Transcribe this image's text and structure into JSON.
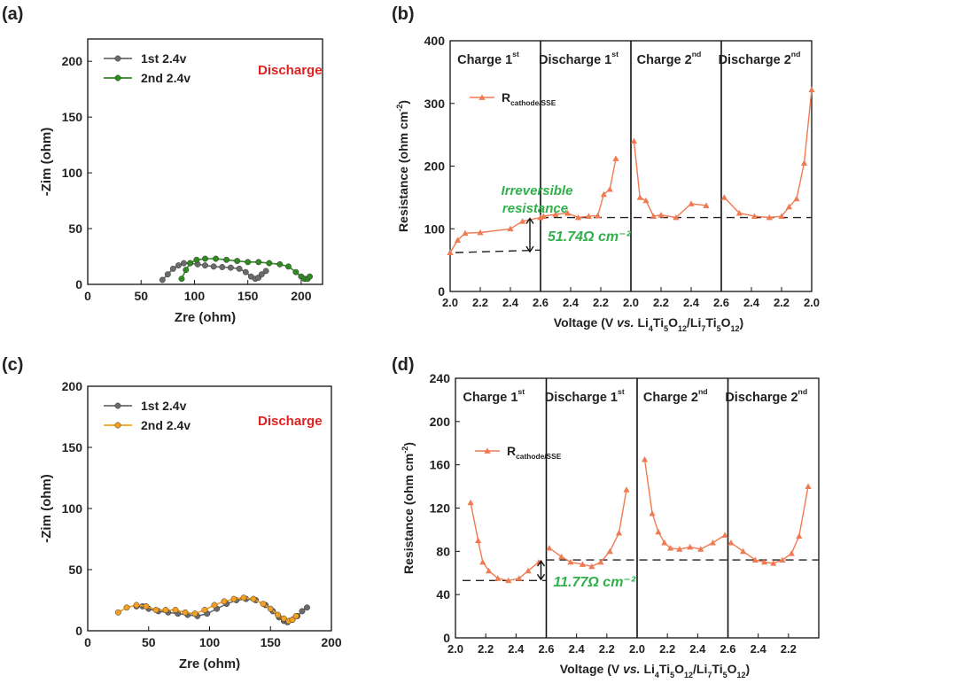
{
  "colors": {
    "grey": "#6b6b6b",
    "green": "#2e8b1e",
    "orange": "#f5a020",
    "coral": "#f07a52",
    "red_text": "#e02020",
    "green_text": "#2fb04a"
  },
  "chart_data": [
    {
      "panel": "(a)",
      "type": "line",
      "xlabel": "Zre (ohm)",
      "ylabel": "-Zim (ohm)",
      "xlim": [
        0,
        220
      ],
      "ylim": [
        0,
        220
      ],
      "xticks": [
        0,
        50,
        100,
        150,
        200
      ],
      "yticks": [
        0,
        50,
        100,
        150,
        200
      ],
      "annotation": "Discharge",
      "series": [
        {
          "name": "1st 2.4v",
          "color": "#6b6b6b",
          "x": [
            70,
            75,
            80,
            85,
            90,
            96,
            103,
            110,
            118,
            126,
            134,
            142,
            148,
            153,
            157,
            160,
            163,
            167
          ],
          "y": [
            4,
            9,
            14,
            17,
            19,
            19,
            18,
            17,
            16,
            15.5,
            15,
            14,
            11,
            7,
            5,
            6,
            9,
            12
          ]
        },
        {
          "name": "2nd 2.4v",
          "color": "#2e8b1e",
          "x": [
            88,
            92,
            96,
            102,
            110,
            120,
            130,
            140,
            150,
            160,
            170,
            180,
            188,
            195,
            200,
            203,
            206,
            208
          ],
          "y": [
            5,
            13,
            19,
            22,
            23,
            23,
            22,
            21,
            20,
            20,
            19,
            18,
            16,
            11,
            7,
            5,
            5,
            7
          ]
        }
      ]
    },
    {
      "panel": "(b)",
      "type": "line",
      "xlabel": "Voltage (V vs. Li4Ti5O12/Li7Ti5O12)",
      "ylabel": "Resistance (ohm cm-2)",
      "ylim": [
        0,
        400
      ],
      "yticks": [
        0,
        100,
        200,
        300,
        400
      ],
      "segment_ticks": [
        [
          "2.0",
          "2.2",
          "2.4"
        ],
        [
          "2.6",
          "2.4",
          "2.2"
        ],
        [
          "2.0",
          "2.2",
          "2.4"
        ],
        [
          "2.6",
          "2.4",
          "2.2",
          "2.0"
        ]
      ],
      "segment_titles": [
        [
          "Charge 1",
          "st"
        ],
        [
          "Discharge 1",
          "st"
        ],
        [
          "Charge 2",
          "nd"
        ],
        [
          "Discharge 2",
          "nd"
        ]
      ],
      "legend": [
        "R",
        "cathode/SSE"
      ],
      "dashed_lines": [
        {
          "from_x": 2.0,
          "from_y": 62,
          "to_x": 2.6,
          "to_y": 66
        },
        {
          "y": 118
        }
      ],
      "annotations": {
        "irreversible": [
          "Irreversible",
          "resistance"
        ],
        "delta": "51.74Ω cm⁻²"
      },
      "series": [
        {
          "name": "Charge 1st",
          "x": [
            2.0,
            2.05,
            2.1,
            2.2,
            2.4,
            2.48,
            2.6
          ],
          "y": [
            62,
            82,
            93,
            94,
            100,
            112,
            118
          ]
        },
        {
          "name": "Discharge 1st",
          "x": [
            2.58,
            2.5,
            2.42,
            2.35,
            2.28,
            2.22,
            2.18,
            2.14,
            2.1
          ],
          "y": [
            120,
            123,
            125,
            118,
            120,
            121,
            155,
            163,
            212
          ]
        },
        {
          "name": "Charge 2nd",
          "x": [
            2.02,
            2.06,
            2.1,
            2.15,
            2.2,
            2.3,
            2.4,
            2.5
          ],
          "y": [
            240,
            150,
            145,
            120,
            122,
            118,
            140,
            137
          ]
        },
        {
          "name": "Discharge 2nd",
          "x": [
            2.58,
            2.48,
            2.38,
            2.28,
            2.2,
            2.15,
            2.1,
            2.05,
            2.0
          ],
          "y": [
            150,
            125,
            120,
            118,
            120,
            135,
            148,
            205,
            322
          ]
        }
      ]
    },
    {
      "panel": "(c)",
      "type": "line",
      "xlabel": "Zre (ohm)",
      "ylabel": "-Zim (ohm)",
      "xlim": [
        0,
        200
      ],
      "ylim": [
        0,
        200
      ],
      "xticks": [
        0,
        50,
        100,
        150,
        200
      ],
      "yticks": [
        0,
        50,
        100,
        150,
        200
      ],
      "annotation": "Discharge",
      "series": [
        {
          "name": "1st 2.4v",
          "color": "#6b6b6b",
          "x": [
            40,
            45,
            50,
            58,
            66,
            74,
            82,
            90,
            98,
            106,
            114,
            122,
            130,
            138,
            146,
            152,
            157,
            161,
            164,
            168,
            172,
            176,
            180
          ],
          "y": [
            20,
            20,
            18,
            16,
            15,
            14,
            13,
            12,
            14,
            18,
            22,
            25,
            26,
            25,
            21,
            16,
            11,
            8,
            7,
            9,
            12,
            16,
            19
          ]
        },
        {
          "name": "2nd 2.4v",
          "color": "#f5a020",
          "x": [
            25,
            32,
            40,
            48,
            56,
            64,
            72,
            80,
            88,
            96,
            104,
            112,
            120,
            128,
            136,
            144,
            150,
            156,
            161,
            165,
            168,
            171
          ],
          "y": [
            15,
            19,
            21,
            20,
            17,
            17,
            17,
            15,
            14,
            17,
            21,
            24,
            26,
            27,
            26,
            22,
            18,
            13,
            10,
            8,
            9,
            12
          ]
        }
      ]
    },
    {
      "panel": "(d)",
      "type": "line",
      "xlabel": "Voltage (V vs. Li4Ti5O12/Li7Ti5O12)",
      "ylabel": "Resistance (ohm cm-2)",
      "ylim": [
        0,
        240
      ],
      "yticks": [
        0,
        40,
        80,
        120,
        160,
        200,
        240
      ],
      "segment_ticks": [
        [
          "2.0",
          "2.2",
          "2.4"
        ],
        [
          "2.6",
          "2.4",
          "2.2"
        ],
        [
          "2.0",
          "2.2",
          "2.4"
        ],
        [
          "2.6",
          "2.4",
          "2.2"
        ]
      ],
      "segment_titles": [
        [
          "Charge 1",
          "st"
        ],
        [
          "Discharge 1",
          "st"
        ],
        [
          "Charge 2",
          "nd"
        ],
        [
          "Discharge 2",
          "nd"
        ]
      ],
      "legend": [
        "R",
        "cathode/SSE"
      ],
      "dashed_lines": [
        {
          "y": 53,
          "segment": 1
        },
        {
          "y": 72
        }
      ],
      "annotations": {
        "delta": "11.77Ω cm⁻²"
      },
      "series": [
        {
          "name": "Charge 1st",
          "x": [
            2.1,
            2.15,
            2.18,
            2.22,
            2.28,
            2.35,
            2.42,
            2.48,
            2.55
          ],
          "y": [
            125,
            90,
            70,
            62,
            55,
            53,
            55,
            62,
            70
          ]
        },
        {
          "name": "Discharge 1st",
          "x": [
            2.58,
            2.5,
            2.44,
            2.36,
            2.3,
            2.24,
            2.18,
            2.12,
            2.07
          ],
          "y": [
            83,
            75,
            70,
            68,
            66,
            70,
            80,
            97,
            137
          ]
        },
        {
          "name": "Charge 2nd",
          "x": [
            2.05,
            2.1,
            2.14,
            2.18,
            2.22,
            2.28,
            2.35,
            2.42,
            2.5,
            2.58
          ],
          "y": [
            165,
            115,
            98,
            88,
            83,
            82,
            84,
            82,
            88,
            95
          ]
        },
        {
          "name": "Discharge 2nd",
          "x": [
            2.58,
            2.5,
            2.42,
            2.36,
            2.3,
            2.24,
            2.18,
            2.13,
            2.07
          ],
          "y": [
            88,
            80,
            72,
            70,
            69,
            72,
            78,
            94,
            140
          ]
        }
      ]
    }
  ]
}
